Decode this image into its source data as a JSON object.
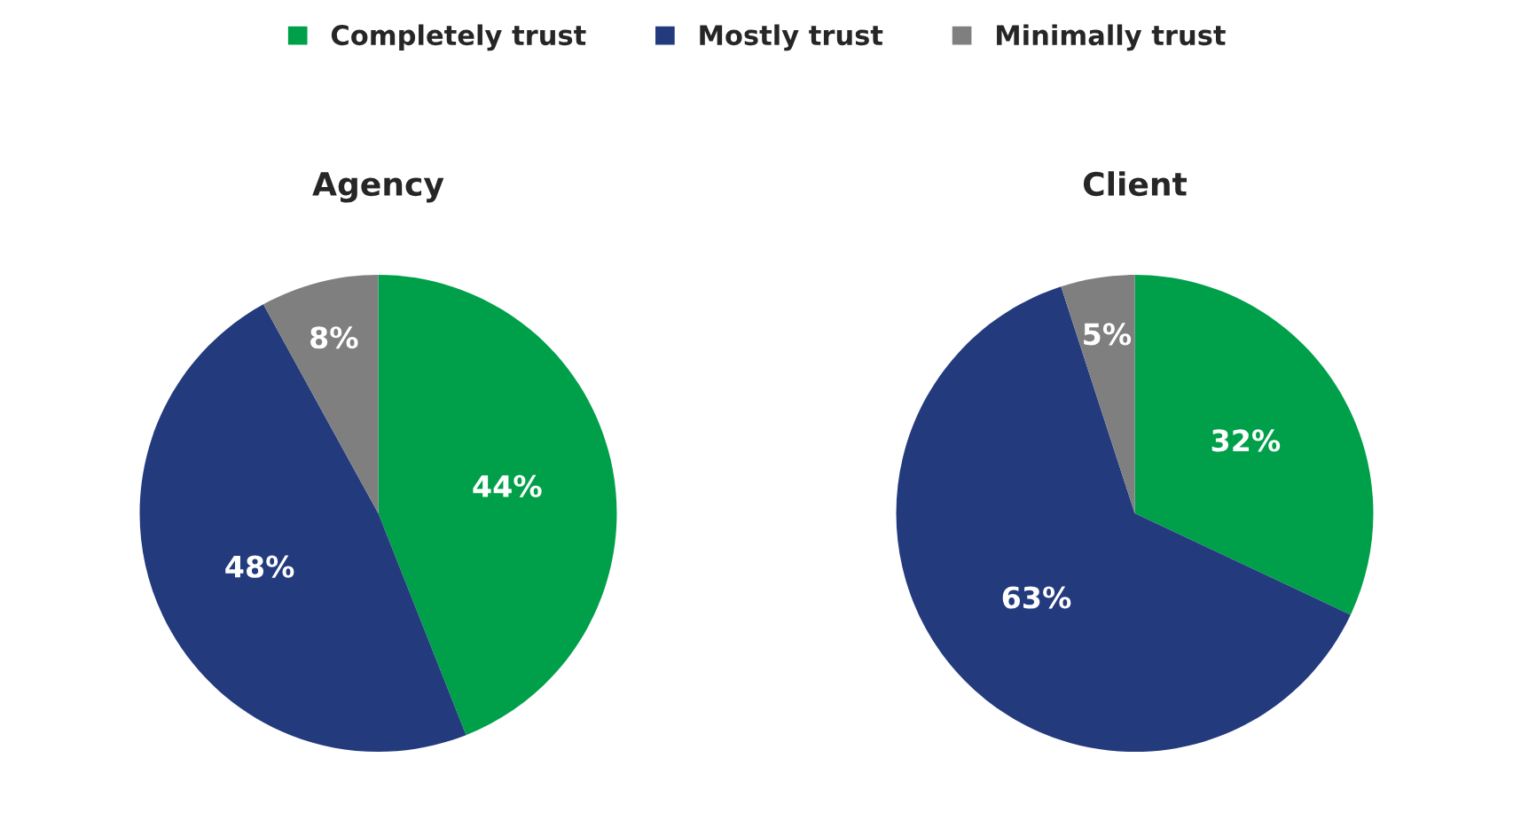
{
  "chart_data": [
    {
      "type": "pie",
      "title": "Agency",
      "categories": [
        "Completely trust",
        "Mostly trust",
        "Minimally trust"
      ],
      "values": [
        44,
        48,
        8
      ],
      "value_labels": [
        "44%",
        "48%",
        "8%"
      ],
      "colors": [
        "#00a04a",
        "#233a7d",
        "#7f7f7f"
      ],
      "legend": "top"
    },
    {
      "type": "pie",
      "title": "Client",
      "values": [
        32,
        63,
        5
      ],
      "value_labels": [
        "32%",
        "63%",
        "5%"
      ],
      "colors": [
        "#00a04a",
        "#233a7d",
        "#7f7f7f"
      ]
    }
  ]
}
